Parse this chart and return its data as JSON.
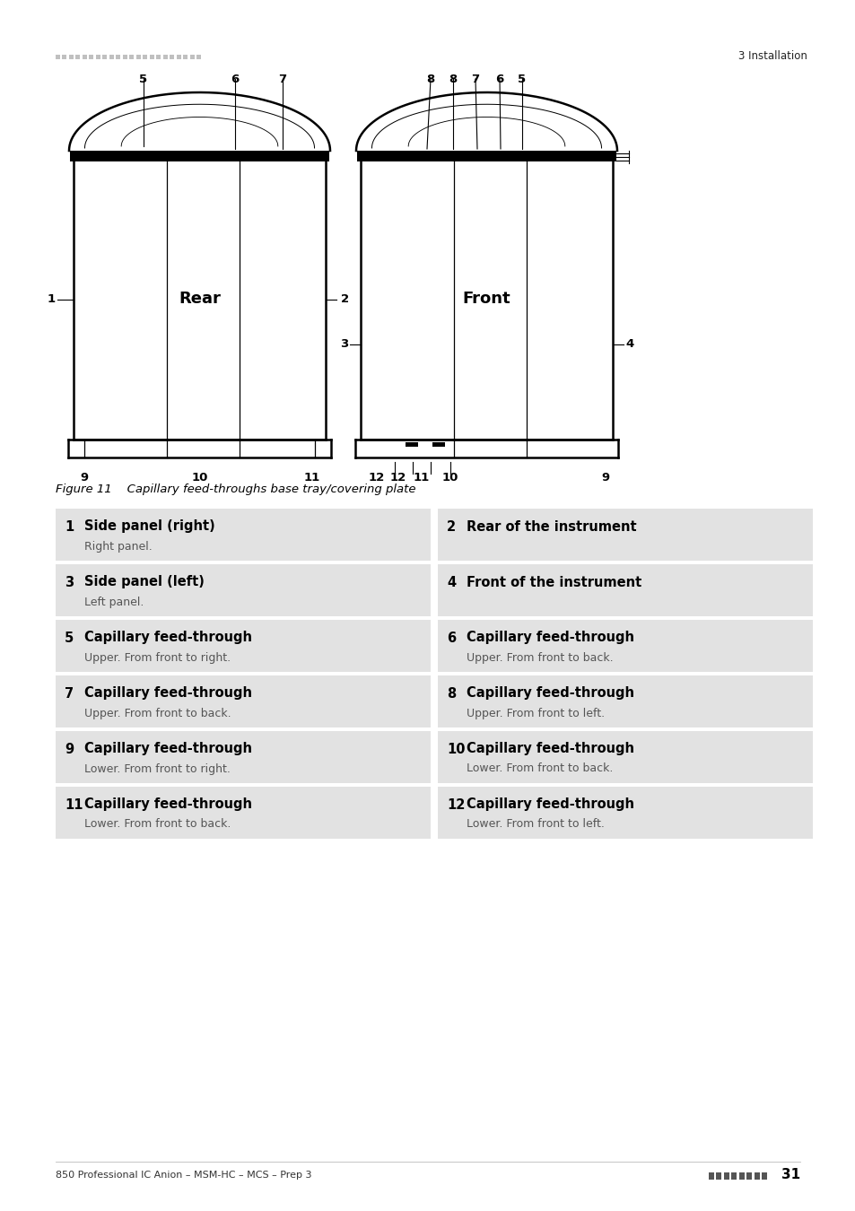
{
  "page_header_right": "3 Installation",
  "figure_caption": "Figure 11    Capillary feed-throughs base tray/covering plate",
  "table_entries": [
    {
      "num": "1",
      "title": "Side panel (right)",
      "desc": "Right panel.",
      "col": 0
    },
    {
      "num": "2",
      "title": "Rear of the instrument",
      "desc": "",
      "col": 1
    },
    {
      "num": "3",
      "title": "Side panel (left)",
      "desc": "Left panel.",
      "col": 0
    },
    {
      "num": "4",
      "title": "Front of the instrument",
      "desc": "",
      "col": 1
    },
    {
      "num": "5",
      "title": "Capillary feed-through",
      "desc": "Upper. From front to right.",
      "col": 0
    },
    {
      "num": "6",
      "title": "Capillary feed-through",
      "desc": "Upper. From front to back.",
      "col": 1
    },
    {
      "num": "7",
      "title": "Capillary feed-through",
      "desc": "Upper. From front to back.",
      "col": 0
    },
    {
      "num": "8",
      "title": "Capillary feed-through",
      "desc": "Upper. From front to left.",
      "col": 1
    },
    {
      "num": "9",
      "title": "Capillary feed-through",
      "desc": "Lower. From front to right.",
      "col": 0
    },
    {
      "num": "10",
      "title": "Capillary feed-through",
      "desc": "Lower. From front to back.",
      "col": 1
    },
    {
      "num": "11",
      "title": "Capillary feed-through",
      "desc": "Lower. From front to back.",
      "col": 0
    },
    {
      "num": "12",
      "title": "Capillary feed-through",
      "desc": "Lower. From front to left.",
      "col": 1
    }
  ],
  "footer_left": "850 Professional IC Anion – MSM-HC – MCS – Prep 3",
  "bg_color": "#ffffff",
  "table_bg": "#e2e2e2",
  "text_color": "#000000"
}
